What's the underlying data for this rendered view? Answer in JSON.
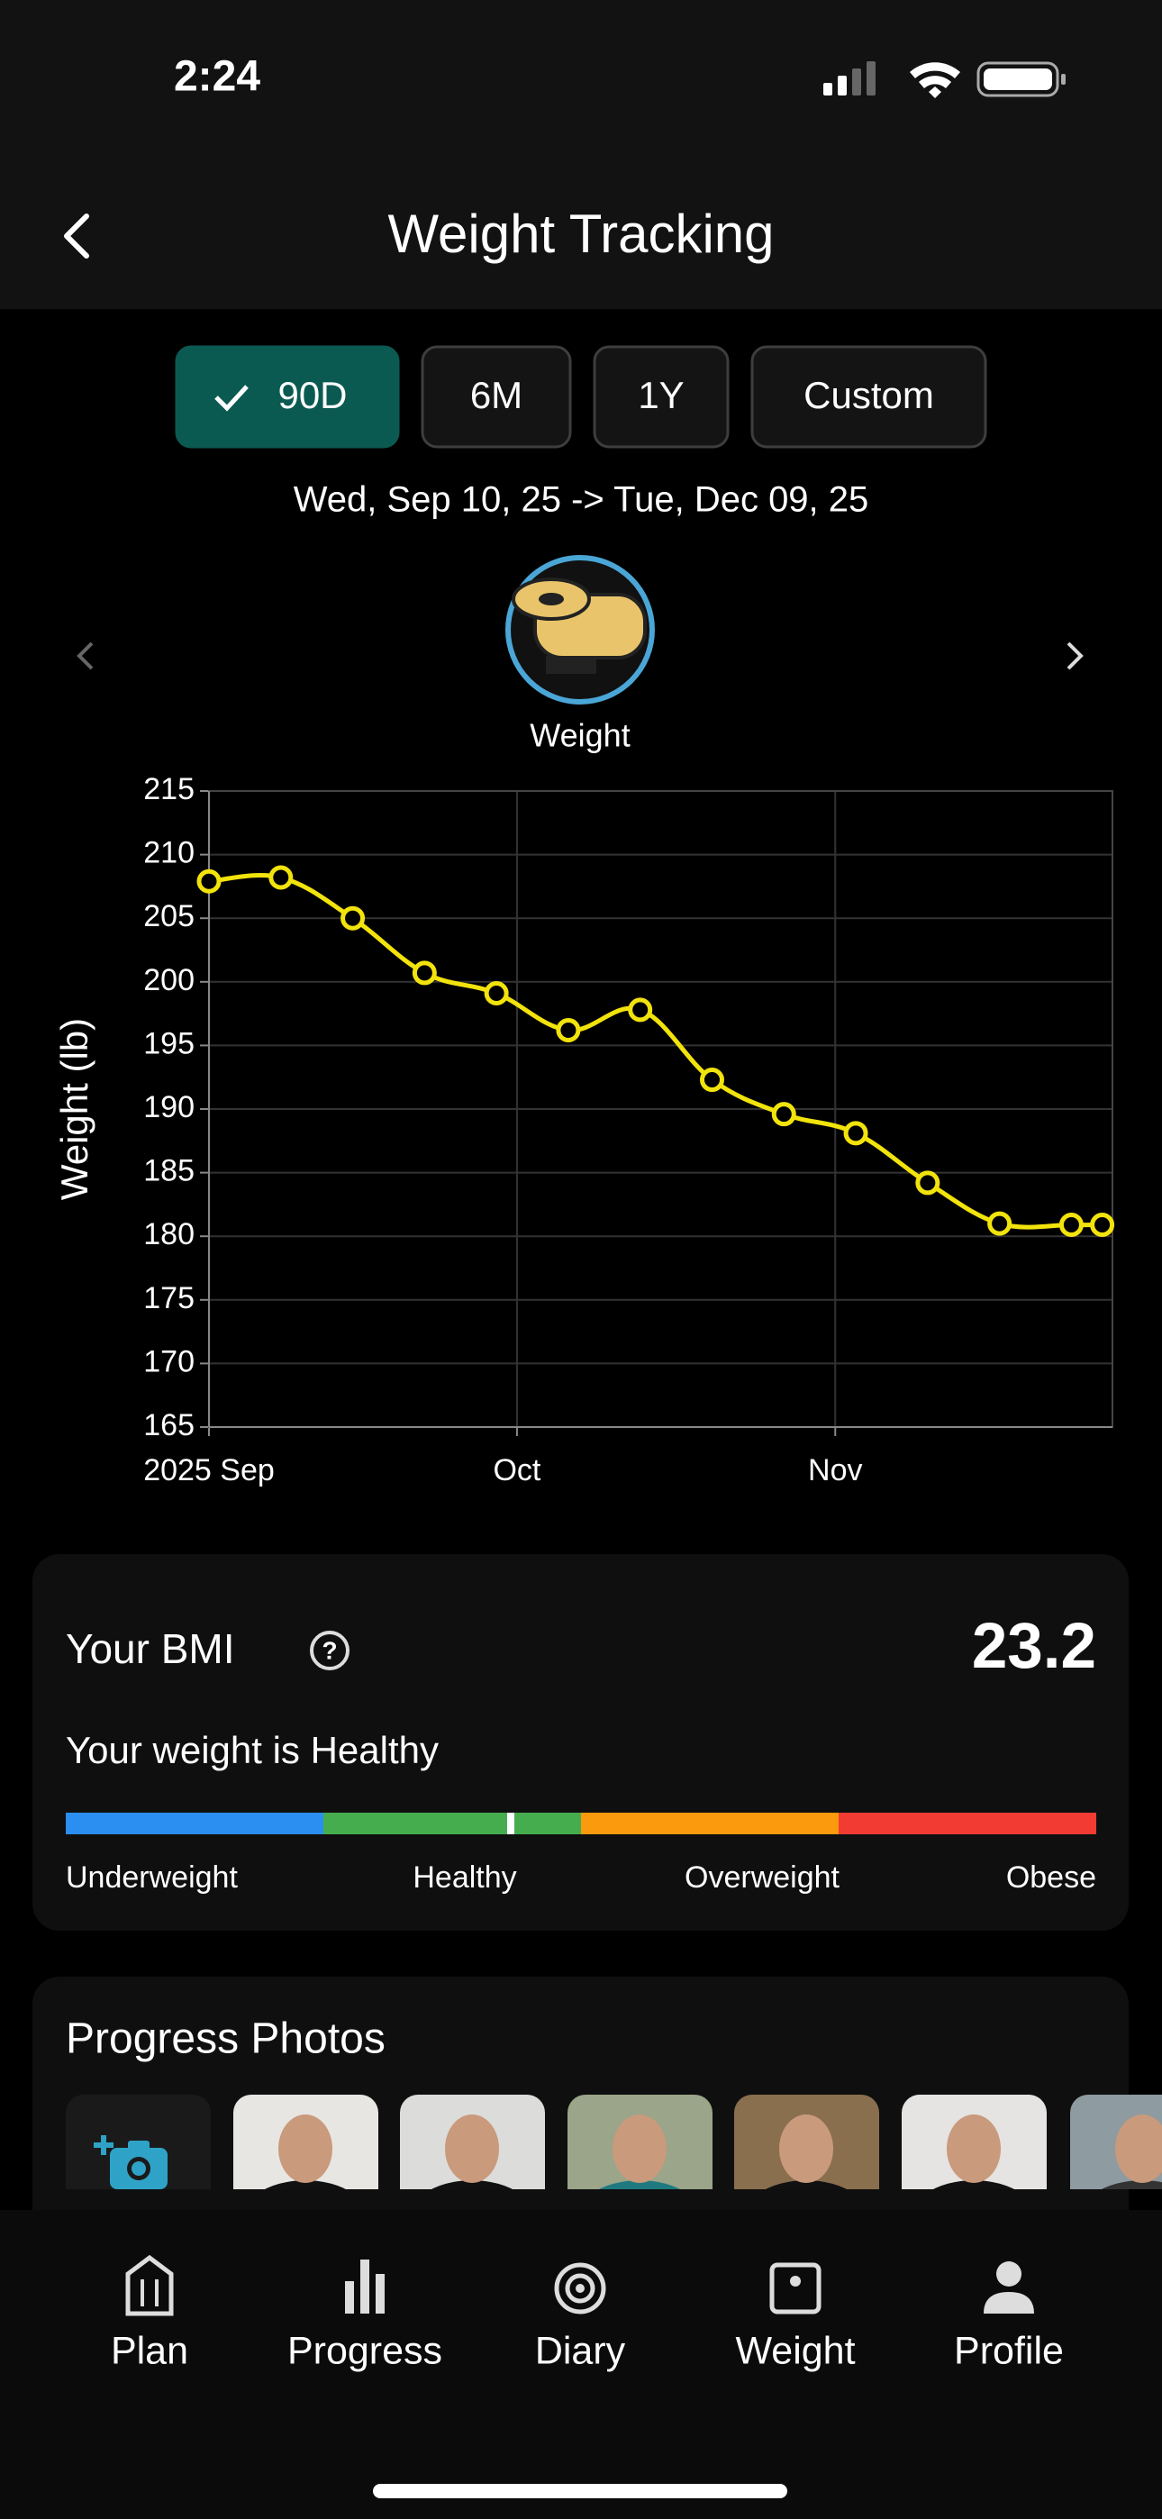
{
  "status_bar": {
    "time": "2:24"
  },
  "header": {
    "title": "Weight Tracking"
  },
  "range_buttons": [
    "90D",
    "6M",
    "1Y",
    "Custom"
  ],
  "date_range": "Wed, Sep 10, 25 -> Tue, Dec 09, 25",
  "metric_label": "Weight",
  "chart_data": {
    "type": "line",
    "ylabel": "Weight (lb)",
    "x": [
      0,
      7,
      14,
      21,
      28,
      35,
      42,
      49,
      56,
      63,
      70,
      77,
      84,
      87
    ],
    "values": [
      207.9,
      208.2,
      205.0,
      200.7,
      199.1,
      196.2,
      197.8,
      192.3,
      189.6,
      188.1,
      184.2,
      181.0,
      180.9,
      180.9
    ],
    "color": "#f2e30c",
    "xlim": [
      0,
      88
    ],
    "xticks": [
      {
        "value": 0,
        "label": "2025 Sep"
      },
      {
        "value": 30,
        "label": "Oct"
      },
      {
        "value": 61,
        "label": "Nov"
      }
    ],
    "ylim": [
      165,
      215
    ],
    "yticks": [
      165,
      170,
      175,
      180,
      185,
      190,
      195,
      200,
      205,
      210,
      215
    ],
    "grid": true
  },
  "bmi": {
    "title": "Your BMI",
    "value": 23.2,
    "status": "Your weight is Healthy",
    "categories": [
      "Underweight",
      "Healthy",
      "Overweight",
      "Obese"
    ],
    "colors": [
      "#2a8ff0",
      "#45ad4d",
      "#fb9a0c",
      "#f23c33"
    ]
  },
  "photos": {
    "title": "Progress Photos"
  },
  "nav": [
    "Plan",
    "Progress",
    "Diary",
    "Weight",
    "Profile"
  ]
}
